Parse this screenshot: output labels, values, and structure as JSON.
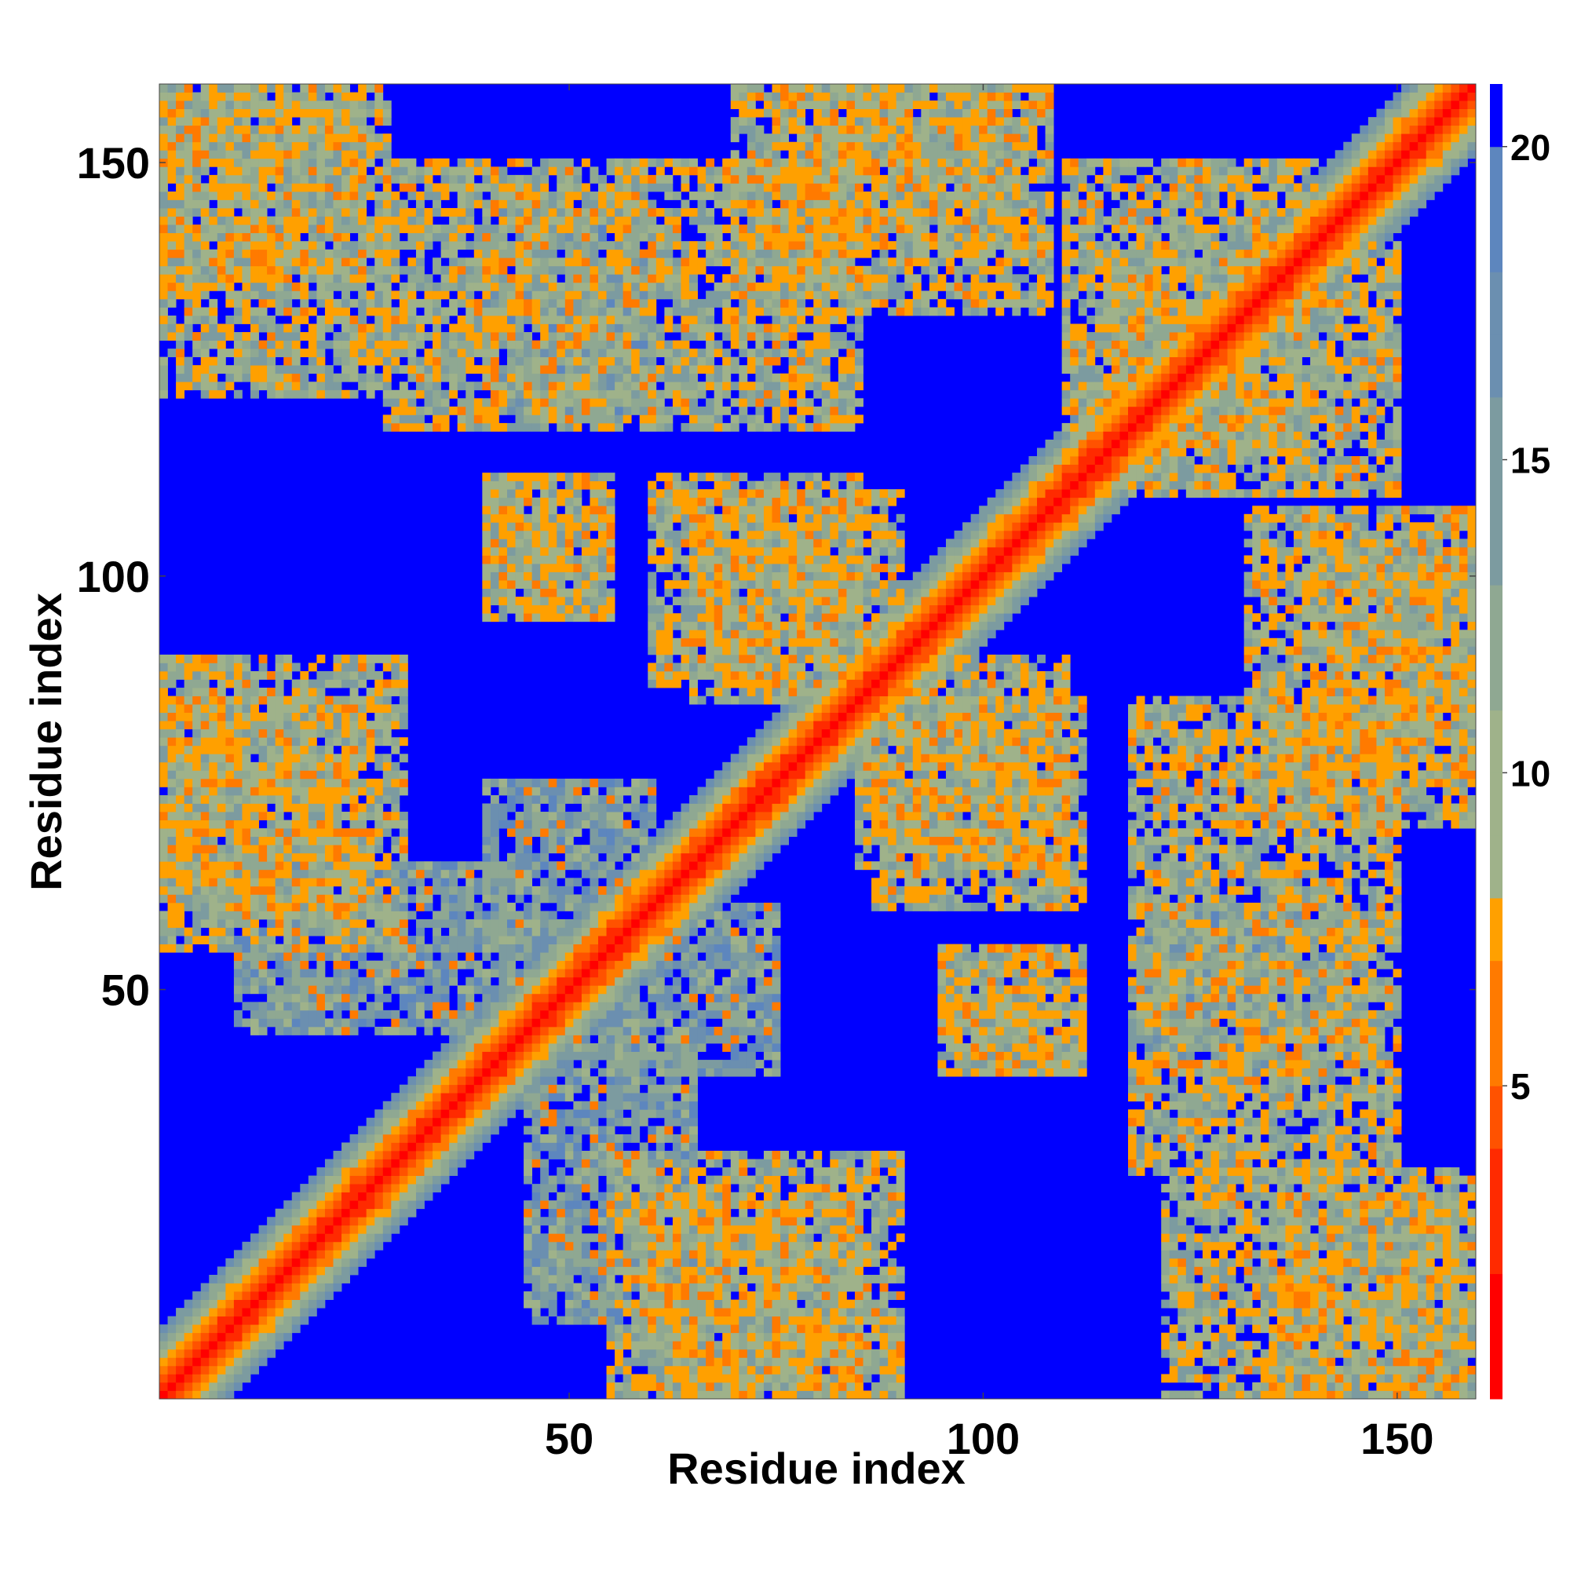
{
  "chart_data": {
    "type": "heatmap",
    "title": "",
    "xlabel": "Residue index",
    "ylabel": "Residue index",
    "n_residues": 159,
    "xlim": [
      1,
      159
    ],
    "ylim": [
      1,
      159
    ],
    "x_ticks": [
      50,
      100,
      150
    ],
    "y_ticks": [
      50,
      100,
      150
    ],
    "x_tick_labels": [
      "50",
      "100",
      "150"
    ],
    "y_tick_labels": [
      "50",
      "100",
      "150"
    ],
    "colorbar": {
      "range": [
        0,
        21
      ],
      "ticks": [
        5,
        10,
        15,
        20
      ],
      "tick_labels": [
        "5",
        "10",
        "15",
        "20"
      ],
      "cutoff_value": 20,
      "colors_low_to_high": [
        "#ff0000",
        "#ff2a00",
        "#ff5200",
        "#ff7a00",
        "#ffa000",
        "#9fb28a",
        "#8fa892",
        "#7c9ba0",
        "#6b8fb0",
        "#5d86be",
        "#0000ff"
      ]
    },
    "diagonal_band_halfwidth": 8,
    "contact_regions": [
      {
        "x": [
          1,
          28
        ],
        "y": [
          122,
          159
        ],
        "level": "mid"
      },
      {
        "x": [
          28,
          85
        ],
        "y": [
          118,
          150
        ],
        "level": "mid"
      },
      {
        "x": [
          70,
          105
        ],
        "y": [
          140,
          159
        ],
        "level": "mid"
      },
      {
        "x": [
          40,
          55
        ],
        "y": [
          95,
          112
        ],
        "level": "mid"
      },
      {
        "x": [
          60,
          85
        ],
        "y": [
          87,
          112
        ],
        "level": "mid"
      },
      {
        "x": [
          1,
          25
        ],
        "y": [
          60,
          85
        ],
        "level": "mid"
      },
      {
        "x": [
          10,
          45
        ],
        "y": [
          45,
          65
        ],
        "level": "low"
      },
      {
        "x": [
          40,
          60
        ],
        "y": [
          55,
          75
        ],
        "level": "low"
      },
      {
        "x": [
          55,
          90
        ],
        "y": [
          1,
          30
        ],
        "level": "mid"
      },
      {
        "x": [
          85,
          110
        ],
        "y": [
          65,
          90
        ],
        "level": "mid"
      },
      {
        "x": [
          95,
          112
        ],
        "y": [
          40,
          55
        ],
        "level": "mid"
      },
      {
        "x": [
          110,
          140
        ],
        "y": [
          115,
          150
        ],
        "level": "mid"
      },
      {
        "x": [
          132,
          159
        ],
        "y": [
          75,
          108
        ],
        "level": "mid"
      },
      {
        "x": [
          120,
          145
        ],
        "y": [
          40,
          60
        ],
        "level": "low"
      },
      {
        "x": [
          135,
          159
        ],
        "y": [
          1,
          25
        ],
        "level": "mid"
      }
    ]
  }
}
